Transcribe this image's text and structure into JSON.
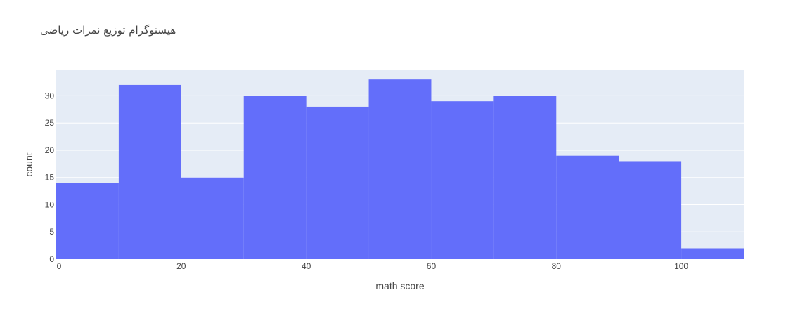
{
  "chart_data": {
    "type": "bar",
    "subtype": "histogram",
    "title": "هیستوگرام توزیع نمرات ریاضی",
    "xlabel": "math score",
    "ylabel": "count",
    "bins": [
      {
        "start": 0,
        "end": 10,
        "count": 14
      },
      {
        "start": 10,
        "end": 20,
        "count": 32
      },
      {
        "start": 20,
        "end": 30,
        "count": 15
      },
      {
        "start": 30,
        "end": 40,
        "count": 30
      },
      {
        "start": 40,
        "end": 50,
        "count": 28
      },
      {
        "start": 50,
        "end": 60,
        "count": 33
      },
      {
        "start": 60,
        "end": 70,
        "count": 29
      },
      {
        "start": 70,
        "end": 80,
        "count": 30
      },
      {
        "start": 80,
        "end": 90,
        "count": 19
      },
      {
        "start": 90,
        "end": 100,
        "count": 18
      },
      {
        "start": 100,
        "end": 110,
        "count": 2
      }
    ],
    "xlim": [
      0,
      110
    ],
    "ylim": [
      0,
      34.7
    ],
    "x_ticks": [
      0,
      20,
      40,
      60,
      80,
      100
    ],
    "y_ticks": [
      0,
      5,
      10,
      15,
      20,
      25,
      30
    ],
    "bar_color": "#636efa",
    "plot_bg_color": "#e5ecf6",
    "gridline_color": "#ffffff",
    "grid": true,
    "legend": "none"
  }
}
